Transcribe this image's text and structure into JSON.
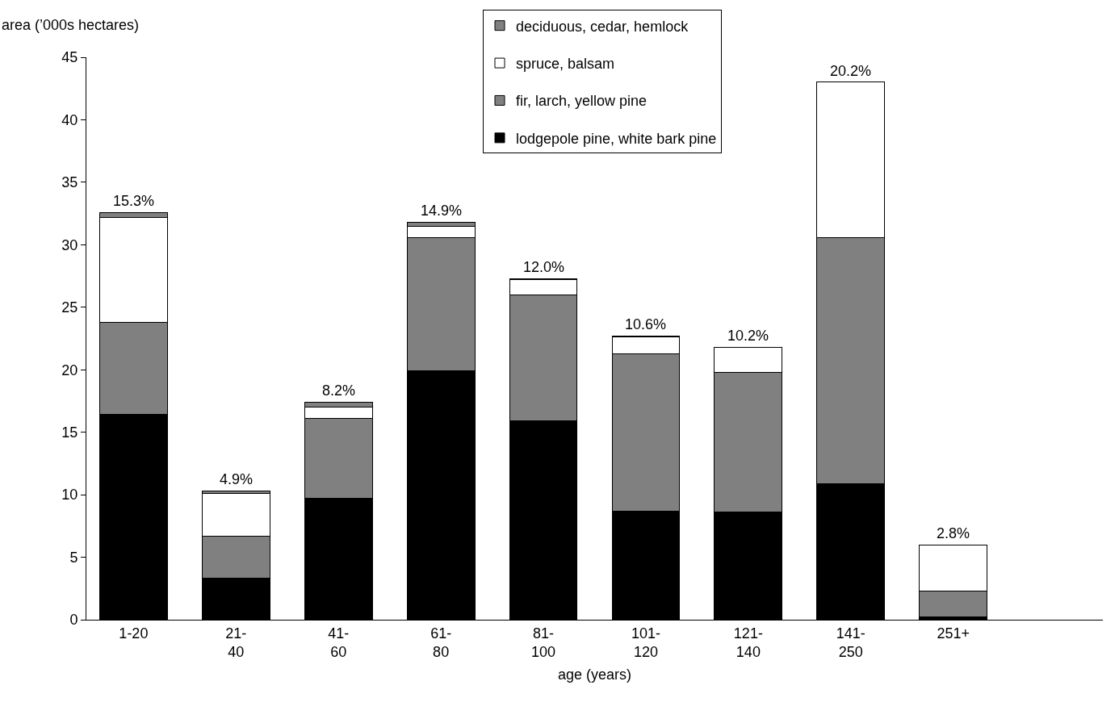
{
  "chart_data": {
    "type": "bar",
    "stacked": true,
    "xlabel": "age (years)",
    "ylabel": "area (’000s hectares)",
    "categories": [
      "1-20",
      "21-\n40",
      "41-\n60",
      "61-\n80",
      "81-\n100",
      "101-\n120",
      "121-\n140",
      "141-\n250",
      "251+"
    ],
    "series": [
      {
        "name": "lodgepole pine, white bark pine",
        "color": "#000000",
        "values": [
          16.4,
          3.3,
          9.7,
          19.9,
          15.9,
          8.7,
          8.6,
          10.9,
          0.2
        ]
      },
      {
        "name": "fir, larch, yellow pine",
        "color": "#808080",
        "values": [
          7.4,
          3.4,
          6.4,
          10.7,
          10.1,
          12.6,
          11.2,
          19.7,
          2.1
        ]
      },
      {
        "name": "spruce, balsam",
        "color": "#ffffff",
        "values": [
          8.4,
          3.4,
          0.9,
          0.9,
          1.2,
          1.3,
          2.0,
          12.4,
          3.7
        ]
      },
      {
        "name": "deciduous, cedar, hemlock",
        "color": "#808080",
        "values": [
          0.4,
          0.2,
          0.4,
          0.3,
          0.1,
          0.1,
          null,
          null,
          null
        ]
      }
    ],
    "annotations": [
      {
        "text": "15.3%",
        "x": "1-20",
        "y": 32.6
      },
      {
        "text": "4.9%",
        "x": "21-\n40",
        "y": 10.3
      },
      {
        "text": "8.2%",
        "x": "41-\n60",
        "y": 17.4
      },
      {
        "text": "14.9%",
        "x": "61-\n80",
        "y": 31.8
      },
      {
        "text": "12.0%",
        "x": "81-\n100",
        "y": 27.3
      },
      {
        "text": "10.6%",
        "x": "101-\n120",
        "y": 22.7
      },
      {
        "text": "10.2%",
        "x": "121-\n140",
        "y": 21.8
      },
      {
        "text": "20.2%",
        "x": "141-\n250",
        "y": 43.0
      },
      {
        "text": "2.8%",
        "x": "251+",
        "y": 6.0
      }
    ],
    "ylim": [
      0,
      45
    ],
    "yticks": [
      0,
      5,
      10,
      15,
      20,
      25,
      30,
      35,
      40,
      45
    ],
    "legend": "top"
  }
}
